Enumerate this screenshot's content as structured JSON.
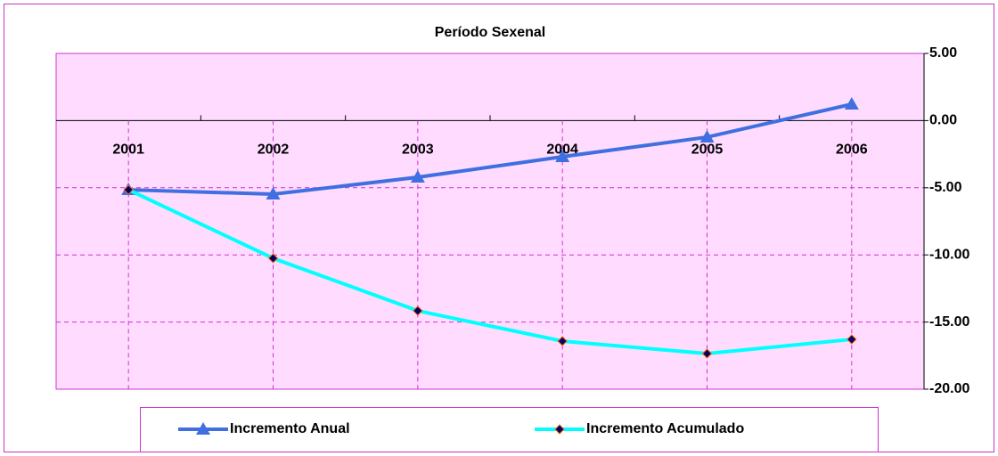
{
  "chart_data": {
    "type": "line",
    "title": "Período Sexenal",
    "categories": [
      "2001",
      "2002",
      "2003",
      "2004",
      "2005",
      "2006"
    ],
    "series": [
      {
        "name": "Incremento Anual",
        "color": "#3f6fe0",
        "marker": "triangle",
        "values": [
          -5.15,
          -5.48,
          -4.22,
          -2.69,
          -1.23,
          1.22
        ]
      },
      {
        "name": "Incremento Acumulado",
        "color": "#00ffff",
        "marker": "diamond",
        "values": [
          -5.15,
          -10.25,
          -14.16,
          -16.42,
          -17.35,
          -16.29
        ]
      }
    ],
    "ylim": [
      -20,
      5
    ],
    "yticks": [
      {
        "value": 5,
        "label": "5.00"
      },
      {
        "value": 0,
        "label": "0.00"
      },
      {
        "value": -5,
        "label": "-5.00"
      },
      {
        "value": -10,
        "label": "-10.00"
      },
      {
        "value": -15,
        "label": "-15.00"
      },
      {
        "value": -20,
        "label": "-20.00"
      }
    ],
    "grid": true,
    "legend": "bottom"
  }
}
